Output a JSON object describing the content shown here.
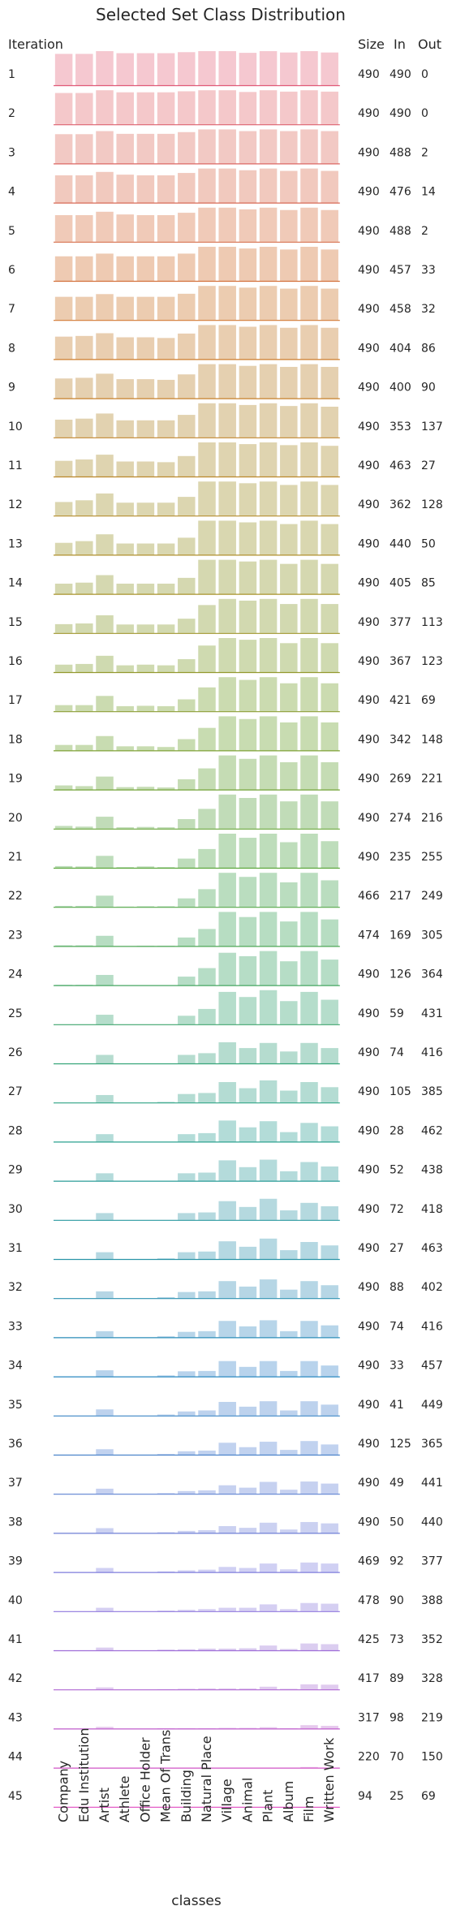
{
  "chart_data": {
    "type": "bar",
    "title": "Selected Set Class Distribution",
    "xlabel": "classes",
    "row_header": "Iteration",
    "column_headers": [
      "Size",
      "In",
      "Out"
    ],
    "categories": [
      "Company",
      "Edu Institution",
      "Artist",
      "Athlete",
      "Office Holder",
      "Mean Of Trans",
      "Building",
      "Natural Place",
      "Village",
      "Animal",
      "Plant",
      "Album",
      "Film",
      "Written Work"
    ],
    "rows": [
      {
        "iteration": "1",
        "size": "490",
        "in": "490",
        "out": "0",
        "values": [
          0.92,
          0.92,
          1.0,
          0.94,
          0.94,
          0.94,
          0.97,
          1.0,
          1.0,
          0.95,
          1.0,
          0.96,
          1.0,
          0.96
        ]
      },
      {
        "iteration": "2",
        "size": "490",
        "in": "490",
        "out": "0",
        "values": [
          0.92,
          0.92,
          1.0,
          0.94,
          0.94,
          0.94,
          0.97,
          1.0,
          1.0,
          0.95,
          1.0,
          0.96,
          1.0,
          0.96
        ]
      },
      {
        "iteration": "3",
        "size": "490",
        "in": "488",
        "out": "2",
        "values": [
          0.86,
          0.86,
          0.95,
          0.87,
          0.87,
          0.87,
          0.92,
          1.0,
          1.0,
          0.95,
          1.0,
          0.95,
          1.0,
          0.95
        ]
      },
      {
        "iteration": "4",
        "size": "490",
        "in": "476",
        "out": "14",
        "values": [
          0.8,
          0.8,
          0.9,
          0.82,
          0.8,
          0.8,
          0.87,
          1.0,
          1.0,
          0.95,
          1.0,
          0.93,
          1.0,
          0.93
        ]
      },
      {
        "iteration": "5",
        "size": "490",
        "in": "488",
        "out": "2",
        "values": [
          0.78,
          0.78,
          0.88,
          0.8,
          0.78,
          0.78,
          0.85,
          1.0,
          1.0,
          0.95,
          1.0,
          0.93,
          1.0,
          0.93
        ]
      },
      {
        "iteration": "6",
        "size": "490",
        "in": "457",
        "out": "33",
        "values": [
          0.72,
          0.72,
          0.8,
          0.72,
          0.72,
          0.72,
          0.8,
          1.0,
          1.0,
          0.95,
          1.0,
          0.92,
          1.0,
          0.92
        ]
      },
      {
        "iteration": "7",
        "size": "490",
        "in": "458",
        "out": "32",
        "values": [
          0.68,
          0.68,
          0.76,
          0.68,
          0.68,
          0.68,
          0.77,
          1.0,
          1.0,
          0.95,
          1.0,
          0.92,
          1.0,
          0.92
        ]
      },
      {
        "iteration": "8",
        "size": "490",
        "in": "404",
        "out": "86",
        "values": [
          0.66,
          0.68,
          0.76,
          0.64,
          0.64,
          0.62,
          0.75,
          1.0,
          1.0,
          0.95,
          1.0,
          0.92,
          1.0,
          0.92
        ]
      },
      {
        "iteration": "9",
        "size": "490",
        "in": "400",
        "out": "90",
        "values": [
          0.58,
          0.6,
          0.72,
          0.56,
          0.56,
          0.54,
          0.7,
          1.0,
          1.0,
          0.95,
          1.0,
          0.92,
          1.0,
          0.92
        ]
      },
      {
        "iteration": "10",
        "size": "490",
        "in": "353",
        "out": "137",
        "values": [
          0.52,
          0.55,
          0.7,
          0.5,
          0.5,
          0.5,
          0.66,
          1.0,
          1.0,
          0.95,
          1.0,
          0.92,
          1.0,
          0.9
        ]
      },
      {
        "iteration": "11",
        "size": "490",
        "in": "463",
        "out": "27",
        "values": [
          0.46,
          0.5,
          0.64,
          0.44,
          0.44,
          0.42,
          0.6,
          1.0,
          1.0,
          0.95,
          1.0,
          0.92,
          1.0,
          0.9
        ]
      },
      {
        "iteration": "12",
        "size": "490",
        "in": "362",
        "out": "128",
        "values": [
          0.4,
          0.45,
          0.65,
          0.38,
          0.38,
          0.38,
          0.55,
          1.0,
          1.0,
          0.95,
          1.0,
          0.9,
          1.0,
          0.9
        ]
      },
      {
        "iteration": "13",
        "size": "490",
        "in": "440",
        "out": "50",
        "values": [
          0.35,
          0.4,
          0.6,
          0.33,
          0.33,
          0.33,
          0.5,
          1.0,
          1.0,
          0.95,
          1.0,
          0.9,
          1.0,
          0.9
        ]
      },
      {
        "iteration": "14",
        "size": "490",
        "in": "405",
        "out": "85",
        "values": [
          0.3,
          0.33,
          0.55,
          0.3,
          0.3,
          0.3,
          0.47,
          1.0,
          1.0,
          0.95,
          1.0,
          0.88,
          1.0,
          0.88
        ]
      },
      {
        "iteration": "15",
        "size": "490",
        "in": "377",
        "out": "113",
        "values": [
          0.26,
          0.28,
          0.52,
          0.25,
          0.25,
          0.25,
          0.42,
          0.82,
          1.0,
          0.95,
          1.0,
          0.85,
          1.0,
          0.85
        ]
      },
      {
        "iteration": "16",
        "size": "490",
        "in": "367",
        "out": "123",
        "values": [
          0.22,
          0.24,
          0.48,
          0.2,
          0.22,
          0.2,
          0.38,
          0.78,
          1.0,
          0.95,
          1.0,
          0.85,
          1.0,
          0.85
        ]
      },
      {
        "iteration": "17",
        "size": "490",
        "in": "421",
        "out": "69",
        "values": [
          0.18,
          0.18,
          0.45,
          0.15,
          0.16,
          0.15,
          0.35,
          0.7,
          1.0,
          0.92,
          1.0,
          0.82,
          1.0,
          0.82
        ]
      },
      {
        "iteration": "18",
        "size": "490",
        "in": "342",
        "out": "148",
        "values": [
          0.16,
          0.16,
          0.42,
          0.12,
          0.12,
          0.1,
          0.33,
          0.66,
          1.0,
          0.92,
          1.0,
          0.82,
          1.0,
          0.82
        ]
      },
      {
        "iteration": "19",
        "size": "490",
        "in": "269",
        "out": "221",
        "values": [
          0.12,
          0.1,
          0.38,
          0.07,
          0.08,
          0.06,
          0.3,
          0.62,
          1.0,
          0.9,
          1.0,
          0.8,
          1.0,
          0.8
        ]
      },
      {
        "iteration": "20",
        "size": "490",
        "in": "274",
        "out": "216",
        "values": [
          0.08,
          0.06,
          0.35,
          0.04,
          0.05,
          0.04,
          0.28,
          0.58,
          1.0,
          0.9,
          1.0,
          0.8,
          1.0,
          0.8
        ]
      },
      {
        "iteration": "21",
        "size": "490",
        "in": "235",
        "out": "255",
        "values": [
          0.05,
          0.04,
          0.35,
          0.02,
          0.04,
          0.02,
          0.27,
          0.55,
          1.0,
          0.88,
          1.0,
          0.75,
          1.0,
          0.78
        ]
      },
      {
        "iteration": "22",
        "size": "466",
        "in": "217",
        "out": "249",
        "values": [
          0.03,
          0.03,
          0.33,
          0.01,
          0.02,
          0.02,
          0.25,
          0.52,
          1.0,
          0.88,
          1.0,
          0.72,
          1.0,
          0.78
        ]
      },
      {
        "iteration": "23",
        "size": "474",
        "in": "169",
        "out": "305",
        "values": [
          0.02,
          0.02,
          0.3,
          0.0,
          0.01,
          0.01,
          0.25,
          0.5,
          1.0,
          0.85,
          1.0,
          0.72,
          1.0,
          0.78
        ]
      },
      {
        "iteration": "24",
        "size": "490",
        "in": "126",
        "out": "364",
        "values": [
          0.01,
          0.01,
          0.3,
          0.0,
          0.0,
          0.0,
          0.25,
          0.5,
          0.95,
          0.85,
          1.0,
          0.7,
          1.0,
          0.75
        ]
      },
      {
        "iteration": "25",
        "size": "490",
        "in": "59",
        "out": "431",
        "values": [
          0.0,
          0.0,
          0.28,
          0.0,
          0.0,
          0.0,
          0.25,
          0.45,
          0.95,
          0.8,
          1.0,
          0.68,
          0.95,
          0.72
        ]
      },
      {
        "iteration": "26",
        "size": "490",
        "in": "74",
        "out": "416",
        "values": [
          0.0,
          0.0,
          0.25,
          0.0,
          0.0,
          0.0,
          0.25,
          0.3,
          0.62,
          0.45,
          0.6,
          0.35,
          0.6,
          0.45
        ]
      },
      {
        "iteration": "27",
        "size": "490",
        "in": "105",
        "out": "385",
        "values": [
          0.0,
          0.0,
          0.22,
          0.0,
          0.0,
          0.02,
          0.25,
          0.28,
          0.6,
          0.42,
          0.65,
          0.35,
          0.6,
          0.45
        ]
      },
      {
        "iteration": "28",
        "size": "490",
        "in": "28",
        "out": "462",
        "values": [
          0.0,
          0.0,
          0.22,
          0.0,
          0.0,
          0.0,
          0.22,
          0.25,
          0.62,
          0.42,
          0.6,
          0.28,
          0.55,
          0.45
        ]
      },
      {
        "iteration": "29",
        "size": "490",
        "in": "52",
        "out": "438",
        "values": [
          0.0,
          0.0,
          0.22,
          0.0,
          0.0,
          0.0,
          0.22,
          0.24,
          0.6,
          0.4,
          0.62,
          0.28,
          0.55,
          0.42
        ]
      },
      {
        "iteration": "30",
        "size": "490",
        "in": "72",
        "out": "418",
        "values": [
          0.0,
          0.0,
          0.2,
          0.0,
          0.0,
          0.0,
          0.2,
          0.22,
          0.55,
          0.38,
          0.62,
          0.28,
          0.5,
          0.4
        ]
      },
      {
        "iteration": "31",
        "size": "490",
        "in": "27",
        "out": "463",
        "values": [
          0.0,
          0.0,
          0.2,
          0.0,
          0.0,
          0.02,
          0.2,
          0.22,
          0.52,
          0.36,
          0.6,
          0.26,
          0.5,
          0.4
        ]
      },
      {
        "iteration": "32",
        "size": "490",
        "in": "88",
        "out": "402",
        "values": [
          0.0,
          0.0,
          0.2,
          0.0,
          0.0,
          0.03,
          0.18,
          0.2,
          0.5,
          0.34,
          0.55,
          0.25,
          0.5,
          0.38
        ]
      },
      {
        "iteration": "33",
        "size": "490",
        "in": "74",
        "out": "416",
        "values": [
          0.0,
          0.0,
          0.18,
          0.0,
          0.0,
          0.03,
          0.16,
          0.18,
          0.48,
          0.32,
          0.5,
          0.18,
          0.48,
          0.35
        ]
      },
      {
        "iteration": "34",
        "size": "490",
        "in": "33",
        "out": "457",
        "values": [
          0.0,
          0.0,
          0.18,
          0.0,
          0.0,
          0.03,
          0.15,
          0.16,
          0.45,
          0.28,
          0.45,
          0.16,
          0.45,
          0.32
        ]
      },
      {
        "iteration": "35",
        "size": "490",
        "in": "41",
        "out": "449",
        "values": [
          0.0,
          0.0,
          0.18,
          0.0,
          0.0,
          0.03,
          0.12,
          0.15,
          0.4,
          0.26,
          0.42,
          0.15,
          0.42,
          0.32
        ]
      },
      {
        "iteration": "36",
        "size": "490",
        "in": "125",
        "out": "365",
        "values": [
          0.0,
          0.0,
          0.16,
          0.0,
          0.0,
          0.02,
          0.1,
          0.12,
          0.35,
          0.22,
          0.38,
          0.14,
          0.4,
          0.3
        ]
      },
      {
        "iteration": "37",
        "size": "490",
        "in": "49",
        "out": "441",
        "values": [
          0.0,
          0.0,
          0.15,
          0.0,
          0.0,
          0.02,
          0.08,
          0.1,
          0.25,
          0.18,
          0.35,
          0.12,
          0.36,
          0.3
        ]
      },
      {
        "iteration": "38",
        "size": "490",
        "in": "50",
        "out": "440",
        "values": [
          0.0,
          0.0,
          0.14,
          0.0,
          0.0,
          0.02,
          0.06,
          0.08,
          0.2,
          0.15,
          0.3,
          0.1,
          0.32,
          0.28
        ]
      },
      {
        "iteration": "39",
        "size": "469",
        "in": "92",
        "out": "377",
        "values": [
          0.0,
          0.0,
          0.12,
          0.0,
          0.0,
          0.02,
          0.05,
          0.07,
          0.15,
          0.12,
          0.25,
          0.08,
          0.28,
          0.25
        ]
      },
      {
        "iteration": "40",
        "size": "478",
        "in": "90",
        "out": "388",
        "values": [
          0.0,
          0.0,
          0.1,
          0.0,
          0.0,
          0.02,
          0.04,
          0.06,
          0.1,
          0.1,
          0.2,
          0.06,
          0.24,
          0.22
        ]
      },
      {
        "iteration": "41",
        "size": "425",
        "in": "73",
        "out": "352",
        "values": [
          0.0,
          0.0,
          0.08,
          0.0,
          0.0,
          0.02,
          0.03,
          0.05,
          0.05,
          0.06,
          0.14,
          0.04,
          0.2,
          0.18
        ]
      },
      {
        "iteration": "42",
        "size": "417",
        "in": "89",
        "out": "328",
        "values": [
          0.0,
          0.0,
          0.06,
          0.0,
          0.0,
          0.01,
          0.02,
          0.03,
          0.03,
          0.03,
          0.08,
          0.02,
          0.15,
          0.14
        ]
      },
      {
        "iteration": "43",
        "size": "317",
        "in": "98",
        "out": "219",
        "values": [
          0.0,
          0.0,
          0.05,
          0.0,
          0.0,
          0.01,
          0.01,
          0.01,
          0.02,
          0.02,
          0.04,
          0.01,
          0.1,
          0.08
        ]
      },
      {
        "iteration": "44",
        "size": "220",
        "in": "70",
        "out": "150",
        "values": [
          0.0,
          0.0,
          0.0,
          0.0,
          0.0,
          0.0,
          0.0,
          0.0,
          0.0,
          0.0,
          0.0,
          0.0,
          0.02,
          0.0
        ]
      },
      {
        "iteration": "45",
        "size": "94",
        "in": "25",
        "out": "69",
        "values": [
          0.0,
          0.0,
          0.0,
          0.0,
          0.0,
          0.0,
          0.0,
          0.0,
          0.0,
          0.0,
          0.0,
          0.0,
          0.0,
          0.0
        ]
      }
    ]
  }
}
